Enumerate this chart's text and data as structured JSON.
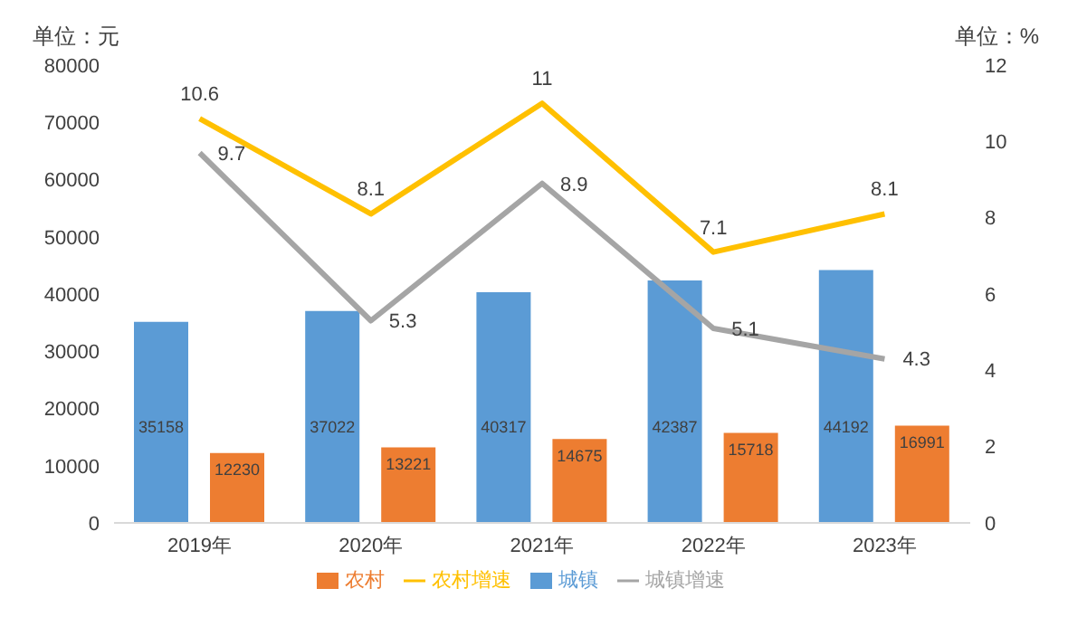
{
  "chart_data": {
    "type": "bar",
    "categories": [
      "2019年",
      "2020年",
      "2021年",
      "2022年",
      "2023年"
    ],
    "ylabel": "单位：元",
    "y2label": "单位：%",
    "series": [
      {
        "name": "城镇",
        "color": "#5b9bd5",
        "values": [
          35158,
          37022,
          40317,
          42387,
          44192
        ]
      },
      {
        "name": "农村",
        "color": "#ed7d31",
        "values": [
          12230,
          13221,
          14675,
          15718,
          16991
        ]
      },
      {
        "name": "城镇增速",
        "type": "line",
        "axis": "y2",
        "color": "#a5a5a5",
        "values": [
          9.7,
          5.3,
          8.9,
          5.1,
          4.3
        ]
      },
      {
        "name": "农村增速",
        "type": "line",
        "axis": "y2",
        "color": "#ffc000",
        "values": [
          10.6,
          8.1,
          11,
          7.1,
          8.1
        ]
      }
    ],
    "ylim": [
      0,
      80000
    ],
    "yticks": [
      0,
      10000,
      20000,
      30000,
      40000,
      50000,
      60000,
      70000,
      80000
    ],
    "y2lim": [
      0,
      12
    ],
    "y2ticks": [
      0,
      2,
      4,
      6,
      8,
      10,
      12
    ],
    "data_labels": true,
    "legend": "bottom",
    "marker": "none",
    "grid": false
  }
}
